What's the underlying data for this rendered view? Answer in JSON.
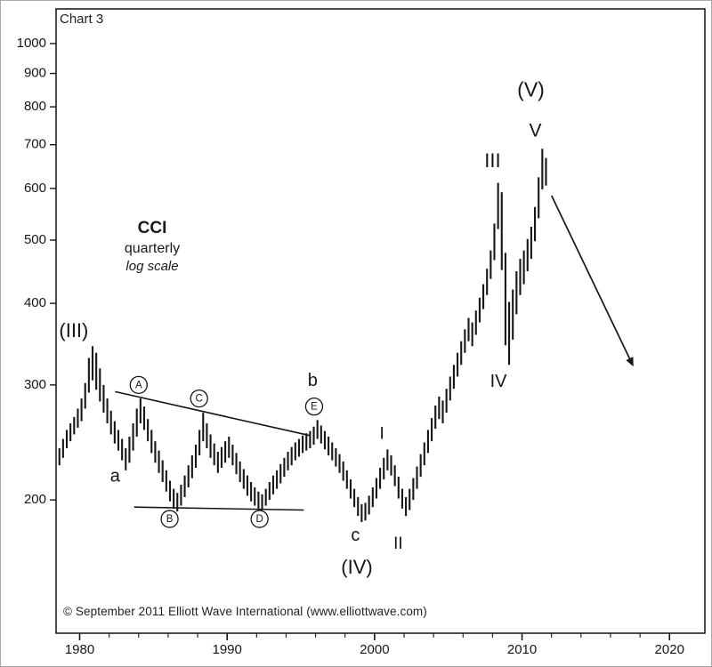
{
  "chart_data": {
    "type": "bar",
    "title": "Chart 3",
    "label_block": {
      "line1": "CCI",
      "line2": "quarterly",
      "line3": "log scale"
    },
    "footer": "© September 2011 Elliott Wave International (www.elliottwave.com)",
    "scale": "log",
    "x_range": [
      1978.4,
      2022.4
    ],
    "y_range": [
      125,
      1130
    ],
    "y_ticks": [
      200,
      300,
      400,
      500,
      600,
      700,
      800,
      900,
      1000
    ],
    "x_ticks": [
      1980,
      1990,
      2000,
      2010,
      2020
    ],
    "x_minor_step": 2,
    "colors": {
      "ink": "#161616",
      "frame": "#000000",
      "background": "#ffffff"
    },
    "bars": [
      [
        1978.5,
        226,
        240
      ],
      [
        1978.75,
        232,
        248
      ],
      [
        1979.0,
        240,
        256
      ],
      [
        1979.25,
        246,
        262
      ],
      [
        1979.5,
        252,
        268
      ],
      [
        1979.75,
        258,
        276
      ],
      [
        1980.0,
        264,
        286
      ],
      [
        1980.25,
        276,
        302
      ],
      [
        1980.5,
        292,
        330
      ],
      [
        1980.75,
        305,
        344
      ],
      [
        1981.0,
        295,
        336
      ],
      [
        1981.25,
        283,
        318
      ],
      [
        1981.5,
        272,
        300
      ],
      [
        1981.75,
        262,
        286
      ],
      [
        1982.0,
        252,
        274
      ],
      [
        1982.25,
        244,
        264
      ],
      [
        1982.5,
        238,
        256
      ],
      [
        1982.75,
        230,
        248
      ],
      [
        1983.0,
        222,
        240
      ],
      [
        1983.25,
        228,
        250
      ],
      [
        1983.5,
        238,
        262
      ],
      [
        1983.75,
        250,
        276
      ],
      [
        1984.0,
        262,
        286
      ],
      [
        1984.25,
        256,
        278
      ],
      [
        1984.5,
        246,
        266
      ],
      [
        1984.75,
        236,
        256
      ],
      [
        1985.0,
        228,
        246
      ],
      [
        1985.25,
        220,
        238
      ],
      [
        1985.5,
        213,
        230
      ],
      [
        1985.75,
        206,
        222
      ],
      [
        1986.0,
        199,
        214
      ],
      [
        1986.25,
        194,
        208
      ],
      [
        1986.5,
        192,
        205
      ],
      [
        1986.75,
        196,
        211
      ],
      [
        1987.0,
        202,
        218
      ],
      [
        1987.25,
        209,
        226
      ],
      [
        1987.5,
        216,
        234
      ],
      [
        1987.75,
        224,
        243
      ],
      [
        1988.0,
        234,
        256
      ],
      [
        1988.25,
        246,
        272
      ],
      [
        1988.5,
        240,
        262
      ],
      [
        1988.75,
        232,
        252
      ],
      [
        1989.0,
        226,
        244
      ],
      [
        1989.25,
        220,
        237
      ],
      [
        1989.5,
        224,
        241
      ],
      [
        1989.75,
        228,
        246
      ],
      [
        1990.0,
        232,
        250
      ],
      [
        1990.25,
        226,
        243
      ],
      [
        1990.5,
        219,
        236
      ],
      [
        1990.75,
        213,
        229
      ],
      [
        1991.0,
        208,
        223
      ],
      [
        1991.25,
        203,
        218
      ],
      [
        1991.5,
        199,
        213
      ],
      [
        1991.75,
        196,
        209
      ],
      [
        1992.0,
        194,
        206
      ],
      [
        1992.25,
        193,
        204
      ],
      [
        1992.5,
        196,
        208
      ],
      [
        1992.75,
        200,
        213
      ],
      [
        1993.0,
        204,
        218
      ],
      [
        1993.25,
        208,
        222
      ],
      [
        1993.5,
        212,
        227
      ],
      [
        1993.75,
        217,
        232
      ],
      [
        1994.0,
        222,
        237
      ],
      [
        1994.25,
        226,
        241
      ],
      [
        1994.5,
        230,
        245
      ],
      [
        1994.75,
        233,
        248
      ],
      [
        1995.0,
        236,
        251
      ],
      [
        1995.25,
        238,
        253
      ],
      [
        1995.5,
        240,
        255
      ],
      [
        1995.75,
        243,
        259
      ],
      [
        1996.0,
        248,
        265
      ],
      [
        1996.25,
        244,
        260
      ],
      [
        1996.5,
        239,
        255
      ],
      [
        1996.75,
        234,
        250
      ],
      [
        1997.0,
        230,
        245
      ],
      [
        1997.25,
        225,
        240
      ],
      [
        1997.5,
        220,
        235
      ],
      [
        1997.75,
        214,
        229
      ],
      [
        1998.0,
        208,
        222
      ],
      [
        1998.25,
        201,
        215
      ],
      [
        1998.5,
        195,
        208
      ],
      [
        1998.75,
        189,
        202
      ],
      [
        1999.0,
        185,
        197
      ],
      [
        1999.25,
        186,
        198
      ],
      [
        1999.5,
        190,
        203
      ],
      [
        1999.75,
        195,
        209
      ],
      [
        2000.0,
        201,
        216
      ],
      [
        2000.25,
        208,
        224
      ],
      [
        2000.5,
        215,
        232
      ],
      [
        2000.75,
        222,
        239
      ],
      [
        2001.0,
        218,
        234
      ],
      [
        2001.25,
        210,
        226
      ],
      [
        2001.5,
        201,
        217
      ],
      [
        2001.75,
        194,
        208
      ],
      [
        2002.0,
        189,
        202
      ],
      [
        2002.25,
        193,
        208
      ],
      [
        2002.5,
        200,
        216
      ],
      [
        2002.75,
        208,
        225
      ],
      [
        2003.0,
        217,
        235
      ],
      [
        2003.25,
        226,
        245
      ],
      [
        2003.5,
        236,
        256
      ],
      [
        2003.75,
        246,
        267
      ],
      [
        2004.0,
        257,
        279
      ],
      [
        2004.25,
        266,
        288
      ],
      [
        2004.5,
        262,
        284
      ],
      [
        2004.75,
        272,
        296
      ],
      [
        2005.0,
        284,
        309
      ],
      [
        2005.25,
        296,
        322
      ],
      [
        2005.5,
        309,
        336
      ],
      [
        2005.75,
        322,
        350
      ],
      [
        2006.0,
        336,
        365
      ],
      [
        2006.25,
        350,
        380
      ],
      [
        2006.5,
        344,
        374
      ],
      [
        2006.75,
        358,
        390
      ],
      [
        2007.0,
        374,
        408
      ],
      [
        2007.25,
        392,
        428
      ],
      [
        2007.5,
        412,
        452
      ],
      [
        2007.75,
        436,
        482
      ],
      [
        2008.0,
        466,
        530
      ],
      [
        2008.25,
        520,
        612
      ],
      [
        2008.5,
        450,
        592
      ],
      [
        2008.75,
        345,
        478
      ],
      [
        2009.0,
        322,
        402
      ],
      [
        2009.25,
        352,
        420
      ],
      [
        2009.5,
        385,
        448
      ],
      [
        2009.75,
        412,
        468
      ],
      [
        2010.0,
        428,
        482
      ],
      [
        2010.25,
        448,
        502
      ],
      [
        2010.5,
        468,
        524
      ],
      [
        2010.75,
        498,
        562
      ],
      [
        2011.0,
        540,
        624
      ],
      [
        2011.25,
        598,
        690
      ],
      [
        2011.5,
        606,
        668
      ]
    ],
    "trendlines": [
      {
        "name": "upper-triangle-line",
        "points": [
          [
            1982.4,
            293
          ],
          [
            1995.6,
            251
          ]
        ]
      },
      {
        "name": "lower-triangle-line",
        "points": [
          [
            1983.7,
            195
          ],
          [
            1995.2,
            193
          ]
        ]
      }
    ],
    "projection_arrow": {
      "from": [
        2012.0,
        585
      ],
      "to": [
        2017.5,
        322
      ]
    },
    "annotations": [
      {
        "text": "(III)",
        "x": 1979.6,
        "y": 362,
        "size": 22
      },
      {
        "text": "a",
        "x": 1982.4,
        "y": 217,
        "size": 20
      },
      {
        "text": "b",
        "x": 1995.8,
        "y": 304,
        "size": 20
      },
      {
        "text": "c",
        "x": 1998.7,
        "y": 176,
        "size": 20
      },
      {
        "text": "(IV)",
        "x": 1998.8,
        "y": 157,
        "size": 22
      },
      {
        "text": "I",
        "x": 2000.5,
        "y": 252,
        "size": 19
      },
      {
        "text": "II",
        "x": 2001.6,
        "y": 171,
        "size": 19
      },
      {
        "text": "III",
        "x": 2008.0,
        "y": 658,
        "size": 22
      },
      {
        "text": "IV",
        "x": 2008.4,
        "y": 303,
        "size": 20
      },
      {
        "text": "(V)",
        "x": 2010.6,
        "y": 845,
        "size": 23
      },
      {
        "text": "V",
        "x": 2010.9,
        "y": 733,
        "size": 21
      }
    ],
    "circled_labels": [
      {
        "text": "A",
        "x": 1984.0,
        "y": 300
      },
      {
        "text": "B",
        "x": 1986.1,
        "y": 187
      },
      {
        "text": "C",
        "x": 1988.1,
        "y": 286
      },
      {
        "text": "D",
        "x": 1992.2,
        "y": 187
      },
      {
        "text": "E",
        "x": 1995.9,
        "y": 278
      }
    ],
    "frame": {
      "l": 62,
      "t": 9,
      "r": 791,
      "b": 711
    }
  }
}
